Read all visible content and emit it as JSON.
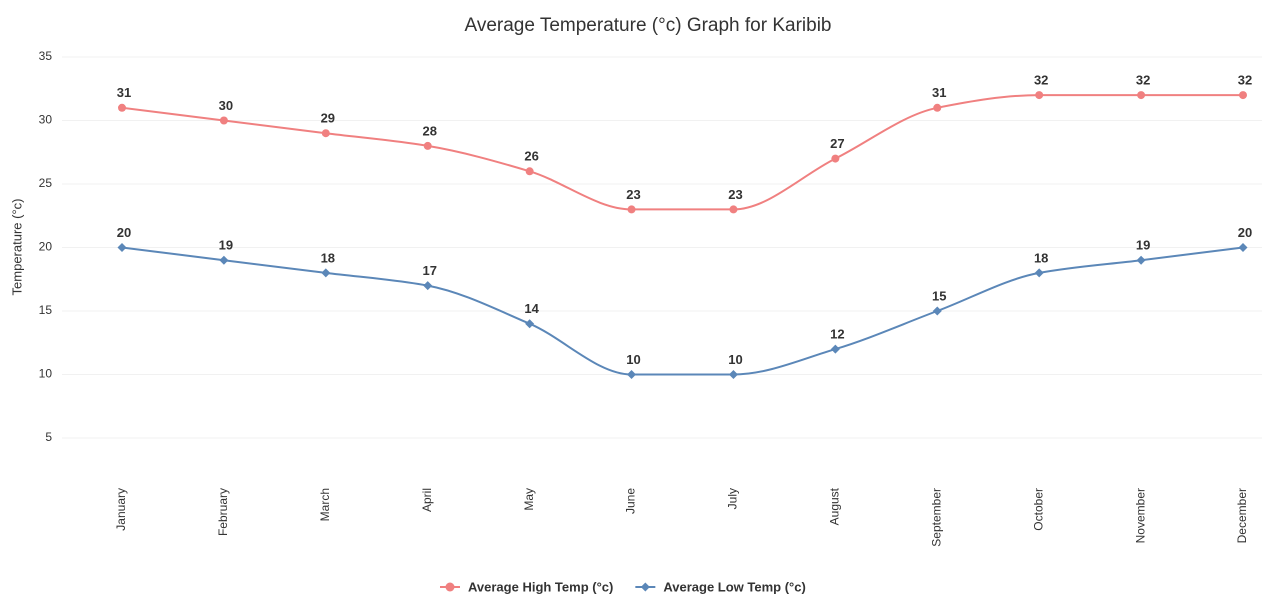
{
  "chart_data": {
    "type": "line",
    "title": "Average Temperature (°c) Graph for Karibib",
    "y_label": "Temperature (°c)",
    "categories": [
      "January",
      "February",
      "March",
      "April",
      "May",
      "June",
      "July",
      "August",
      "September",
      "October",
      "November",
      "December"
    ],
    "series": [
      {
        "name": "Average High Temp (°c)",
        "color": "#f08080",
        "marker": "circle",
        "values": [
          31,
          30,
          29,
          28,
          26,
          23,
          23,
          27,
          31,
          32,
          32,
          32
        ]
      },
      {
        "name": "Average Low Temp (°c)",
        "color": "#5b87b8",
        "marker": "diamond",
        "values": [
          20,
          19,
          18,
          17,
          14,
          10,
          10,
          12,
          15,
          18,
          19,
          20
        ]
      }
    ],
    "ylim": [
      5,
      35
    ],
    "yticks": [
      5,
      10,
      15,
      20,
      25,
      30,
      35
    ],
    "grid": true,
    "legend": "bottom"
  }
}
